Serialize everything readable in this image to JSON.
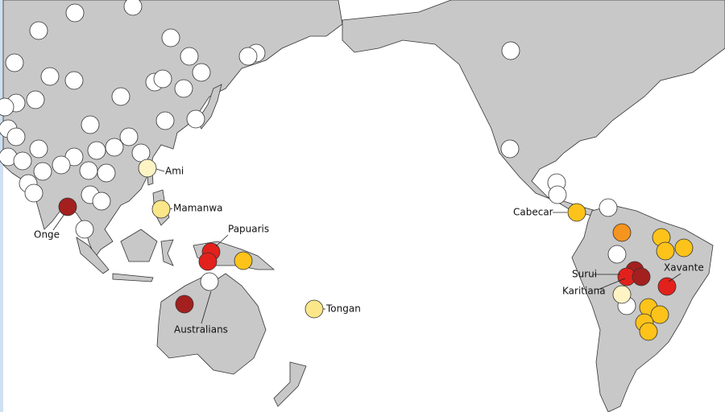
{
  "labels": [
    "Ami",
    "Mamanwa",
    "Onge",
    "Papuaris",
    "Australians",
    "Tongan",
    "Cabecar",
    "Surui",
    "Karitiana",
    "Xavante"
  ]
}
